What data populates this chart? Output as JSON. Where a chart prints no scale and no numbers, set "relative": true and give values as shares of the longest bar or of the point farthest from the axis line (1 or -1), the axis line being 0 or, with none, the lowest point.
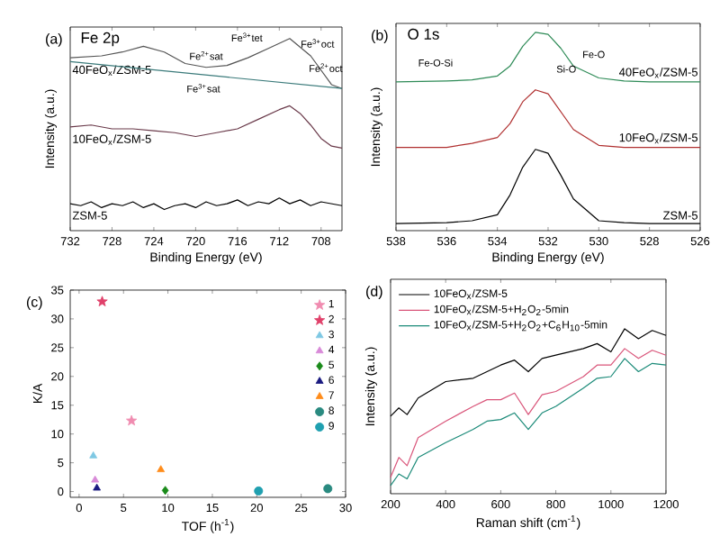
{
  "chart_data": [
    {
      "type": "line",
      "title": "Fe 2p",
      "xlabel": "Binding Energy (eV)",
      "ylabel": "Intensity (a.u.)",
      "relative": true,
      "xlim": [
        732,
        706
      ],
      "xticks": [
        732,
        728,
        724,
        720,
        716,
        712,
        708
      ],
      "annotations": [
        "(a)",
        "Fe$^{2+}$sat",
        "Fe$^{3+}$tet",
        "Fe$^{3+}$oct",
        "Fe$^{2+}$oct",
        "Fe$^{3+}$sat"
      ],
      "series": [
        {
          "name": "40FeO$_{x}$/ZSM-5",
          "color": "#555555",
          "x": [
            732,
            729,
            727,
            725,
            723,
            721,
            719,
            717,
            715,
            713,
            711,
            709,
            707,
            706
          ],
          "values": [
            0.9,
            0.91,
            0.93,
            0.96,
            0.93,
            0.87,
            0.85,
            0.86,
            0.9,
            0.95,
            1.0,
            0.91,
            0.76,
            0.74
          ]
        },
        {
          "color": "#3a7a7a",
          "x": [
            732,
            706
          ],
          "values": [
            0.88,
            0.74
          ]
        },
        {
          "name": "10FeO$_{x}$/ZSM-5",
          "color": "#6a3a4a",
          "x": [
            732,
            730,
            728,
            726,
            724,
            722,
            720,
            718,
            716,
            714,
            712,
            711,
            710,
            709,
            708,
            707,
            706
          ],
          "values": [
            0.54,
            0.55,
            0.53,
            0.53,
            0.52,
            0.51,
            0.49,
            0.51,
            0.53,
            0.58,
            0.63,
            0.65,
            0.61,
            0.55,
            0.48,
            0.44,
            0.43
          ]
        },
        {
          "name": "ZSM-5",
          "color": "#000000",
          "x": [
            732,
            731,
            730,
            729,
            728,
            727,
            726,
            725,
            724,
            723,
            722,
            721,
            720,
            719,
            718,
            717,
            716,
            715,
            714,
            713,
            712,
            711,
            710,
            709,
            708,
            707,
            706
          ],
          "values": [
            0.14,
            0.13,
            0.15,
            0.12,
            0.14,
            0.13,
            0.15,
            0.12,
            0.14,
            0.11,
            0.13,
            0.14,
            0.12,
            0.15,
            0.13,
            0.14,
            0.16,
            0.13,
            0.15,
            0.14,
            0.17,
            0.14,
            0.16,
            0.13,
            0.15,
            0.14,
            0.13
          ]
        }
      ]
    },
    {
      "type": "line",
      "title": "O 1s",
      "xlabel": "Binding Energy (eV)",
      "ylabel": "Intensity (a.u.)",
      "relative": true,
      "xlim": [
        538,
        526
      ],
      "xticks": [
        538,
        536,
        534,
        532,
        530,
        528,
        526
      ],
      "annotations": [
        "(b)",
        "Fe-O-Si",
        "Si-O",
        "Fe-O"
      ],
      "series": [
        {
          "name": "40FeO$_{x}$/ZSM-5",
          "color": "#2e8b57",
          "x": [
            538,
            536,
            535,
            534,
            533.5,
            533,
            532.5,
            532,
            531.5,
            531,
            530,
            529,
            528,
            526
          ],
          "values": [
            0.75,
            0.755,
            0.76,
            0.78,
            0.83,
            0.93,
            1.0,
            0.99,
            0.92,
            0.83,
            0.77,
            0.755,
            0.75,
            0.75
          ]
        },
        {
          "name": "10FeO$_{x}$/ZSM-5",
          "color": "#b03030",
          "x": [
            538,
            536,
            535,
            534,
            533.5,
            533,
            532.5,
            532,
            531.5,
            531,
            530,
            529,
            528,
            526
          ],
          "values": [
            0.42,
            0.42,
            0.44,
            0.47,
            0.54,
            0.65,
            0.71,
            0.69,
            0.6,
            0.51,
            0.43,
            0.42,
            0.42,
            0.42
          ]
        },
        {
          "name": "ZSM-5",
          "color": "#000000",
          "x": [
            538,
            536,
            535,
            534,
            533.5,
            533,
            532.5,
            532,
            531.5,
            531,
            530,
            529,
            528,
            526
          ],
          "values": [
            0.036,
            0.04,
            0.05,
            0.08,
            0.18,
            0.32,
            0.41,
            0.39,
            0.28,
            0.16,
            0.05,
            0.04,
            0.036,
            0.036
          ]
        }
      ]
    },
    {
      "type": "scatter",
      "xlabel": "TOF (h$^{-1}$)",
      "ylabel": "K/A",
      "xlim": [
        -1,
        30
      ],
      "xticks": [
        0,
        5,
        10,
        15,
        20,
        25,
        30
      ],
      "ylim": [
        -1,
        35
      ],
      "yticks": [
        0,
        5,
        10,
        15,
        20,
        25,
        30,
        35
      ],
      "legend": "top right",
      "annotations": [
        "(c)"
      ],
      "series": [
        {
          "name": "1",
          "color": "#f08cb0",
          "marker": "star",
          "x": [
            5.9
          ],
          "values": [
            12.3
          ]
        },
        {
          "name": "2",
          "color": "#e0406a",
          "marker": "star",
          "x": [
            2.6
          ],
          "values": [
            33
          ]
        },
        {
          "name": "3",
          "color": "#7ec8e3",
          "marker": "triangle",
          "x": [
            1.6
          ],
          "values": [
            6.2
          ]
        },
        {
          "name": "4",
          "color": "#d88ad8",
          "marker": "triangle",
          "x": [
            1.8
          ],
          "values": [
            2.0
          ]
        },
        {
          "name": "5",
          "color": "#1a8a1a",
          "marker": "diamond",
          "x": [
            9.7
          ],
          "values": [
            0.2
          ]
        },
        {
          "name": "6",
          "color": "#1a1a80",
          "marker": "triangle",
          "x": [
            2.0
          ],
          "values": [
            0.6
          ]
        },
        {
          "name": "7",
          "color": "#ff8c1a",
          "marker": "triangle",
          "x": [
            9.2
          ],
          "values": [
            3.8
          ]
        },
        {
          "name": "8",
          "color": "#2a8a80",
          "marker": "circle",
          "x": [
            28
          ],
          "values": [
            0.5
          ]
        },
        {
          "name": "9",
          "color": "#20a0b0",
          "marker": "circle",
          "x": [
            20.2
          ],
          "values": [
            0.1
          ]
        }
      ]
    },
    {
      "type": "line",
      "xlabel": "Raman shift (cm$^{-1}$)",
      "ylabel": "Intensity (a.u.)",
      "relative": true,
      "xlim": [
        200,
        1200
      ],
      "xticks": [
        200,
        400,
        600,
        800,
        1000,
        1200
      ],
      "legend": "top left",
      "annotations": [
        "(d)"
      ],
      "series": [
        {
          "name": "10FeO$_{x}$/ZSM-5",
          "color": "#000000",
          "x": [
            200,
            230,
            260,
            300,
            400,
            500,
            550,
            600,
            650,
            700,
            750,
            800,
            900,
            950,
            1000,
            1050,
            1100,
            1150,
            1200
          ],
          "values": [
            0.47,
            0.52,
            0.48,
            0.58,
            0.68,
            0.7,
            0.74,
            0.78,
            0.81,
            0.74,
            0.82,
            0.84,
            0.88,
            0.91,
            0.86,
            1.0,
            0.94,
            0.99,
            0.96
          ]
        },
        {
          "name": "10FeO$_{x}$/ZSM-5+H$_{2}$O$_{2}$-5min",
          "color": "#d9557a",
          "x": [
            200,
            230,
            260,
            300,
            400,
            500,
            550,
            600,
            650,
            700,
            750,
            800,
            900,
            950,
            1000,
            1050,
            1100,
            1150,
            1200
          ],
          "values": [
            0.1,
            0.22,
            0.17,
            0.34,
            0.44,
            0.53,
            0.57,
            0.57,
            0.61,
            0.48,
            0.6,
            0.62,
            0.71,
            0.78,
            0.78,
            0.88,
            0.82,
            0.87,
            0.84
          ]
        },
        {
          "name": "10FeO$_{x}$/ZSM-5+H$_{2}$O$_{2}$+C$_{6}$H$_{10}$-5min",
          "color": "#1a8a78",
          "x": [
            200,
            230,
            260,
            300,
            400,
            500,
            550,
            600,
            650,
            700,
            750,
            800,
            900,
            950,
            1000,
            1050,
            1100,
            1150,
            1200
          ],
          "values": [
            0.05,
            0.12,
            0.09,
            0.22,
            0.31,
            0.39,
            0.44,
            0.45,
            0.49,
            0.39,
            0.49,
            0.53,
            0.64,
            0.7,
            0.71,
            0.82,
            0.74,
            0.79,
            0.78
          ]
        }
      ]
    }
  ]
}
